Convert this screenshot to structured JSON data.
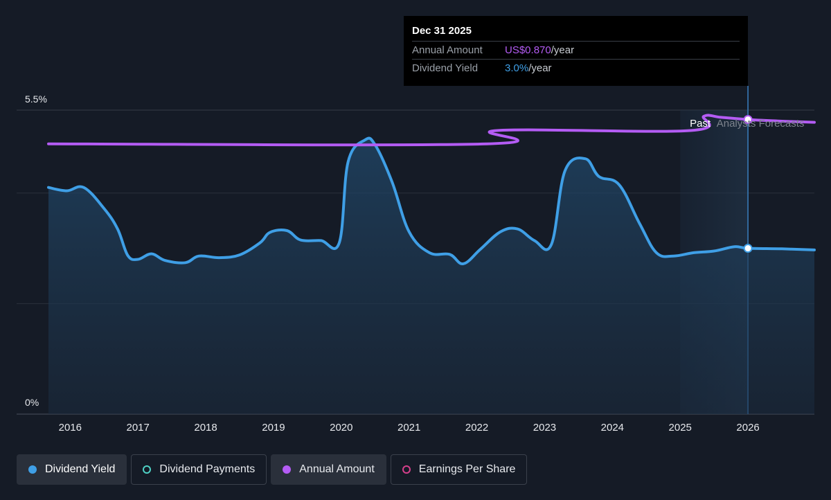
{
  "tooltip": {
    "date": "Dec 31 2025",
    "annual_amount_label": "Annual Amount",
    "annual_amount_value": "US$0.870",
    "annual_amount_suffix": "/year",
    "yield_label": "Dividend Yield",
    "yield_value": "3.0%",
    "yield_suffix": "/year"
  },
  "regions": {
    "past_label": "Past",
    "forecast_label": "Analysts Forecasts"
  },
  "legend": [
    {
      "label": "Dividend Yield",
      "color": "#3f9fe6",
      "style": "filled",
      "active": true
    },
    {
      "label": "Dividend Payments",
      "color": "#4fd1c5",
      "style": "outline",
      "active": false
    },
    {
      "label": "Annual Amount",
      "color": "#b45cf4",
      "style": "filled",
      "active": false
    },
    {
      "label": "Earnings Per Share",
      "color": "#d63f8c",
      "style": "outline",
      "active": false
    }
  ],
  "colors": {
    "background": "#151b26",
    "yield": "#3f9fe6",
    "annual": "#b45cf4",
    "grid": "#2b313c"
  },
  "chart_data": {
    "type": "line",
    "ytick_labels": [
      "5.5%",
      "0%"
    ],
    "ylim": [
      0,
      5.5
    ],
    "xlim": [
      2015.68,
      2026.98
    ],
    "xtick_labels": [
      "2016",
      "2017",
      "2018",
      "2019",
      "2020",
      "2021",
      "2022",
      "2023",
      "2024",
      "2025",
      "2026"
    ],
    "xticks": [
      2016,
      2017,
      2018,
      2019,
      2020,
      2021,
      2022,
      2023,
      2024,
      2025,
      2026
    ],
    "forecast_start": 2025.0,
    "tooltip_x": 2026.0,
    "series": [
      {
        "name": "Dividend Yield",
        "unit": "%",
        "area": true,
        "points": [
          [
            2015.68,
            4.1
          ],
          [
            2015.95,
            4.04
          ],
          [
            2016.2,
            4.1
          ],
          [
            2016.5,
            3.72
          ],
          [
            2016.7,
            3.35
          ],
          [
            2016.85,
            2.87
          ],
          [
            2017.0,
            2.8
          ],
          [
            2017.2,
            2.9
          ],
          [
            2017.4,
            2.78
          ],
          [
            2017.7,
            2.74
          ],
          [
            2017.9,
            2.86
          ],
          [
            2018.2,
            2.83
          ],
          [
            2018.5,
            2.88
          ],
          [
            2018.8,
            3.1
          ],
          [
            2018.95,
            3.29
          ],
          [
            2019.2,
            3.32
          ],
          [
            2019.4,
            3.15
          ],
          [
            2019.7,
            3.14
          ],
          [
            2019.97,
            3.1
          ],
          [
            2020.1,
            4.56
          ],
          [
            2020.35,
            4.96
          ],
          [
            2020.5,
            4.87
          ],
          [
            2020.75,
            4.2
          ],
          [
            2021.0,
            3.3
          ],
          [
            2021.3,
            2.92
          ],
          [
            2021.6,
            2.89
          ],
          [
            2021.8,
            2.72
          ],
          [
            2022.05,
            2.98
          ],
          [
            2022.35,
            3.3
          ],
          [
            2022.6,
            3.35
          ],
          [
            2022.85,
            3.14
          ],
          [
            2023.1,
            3.07
          ],
          [
            2023.3,
            4.4
          ],
          [
            2023.6,
            4.62
          ],
          [
            2023.8,
            4.3
          ],
          [
            2024.1,
            4.15
          ],
          [
            2024.4,
            3.45
          ],
          [
            2024.65,
            2.92
          ],
          [
            2024.9,
            2.86
          ],
          [
            2025.2,
            2.92
          ],
          [
            2025.5,
            2.95
          ],
          [
            2025.8,
            3.03
          ],
          [
            2026.0,
            3.0
          ],
          [
            2026.5,
            2.99
          ],
          [
            2026.98,
            2.97
          ]
        ]
      },
      {
        "name": "Annual Amount",
        "points": [
          [
            2015.68,
            4.89
          ],
          [
            2022.15,
            4.89
          ],
          [
            2022.3,
            5.13
          ],
          [
            2025.15,
            5.13
          ],
          [
            2025.35,
            5.39
          ],
          [
            2025.6,
            5.37
          ],
          [
            2026.0,
            5.33
          ],
          [
            2026.5,
            5.3
          ],
          [
            2026.98,
            5.28
          ]
        ]
      }
    ]
  }
}
